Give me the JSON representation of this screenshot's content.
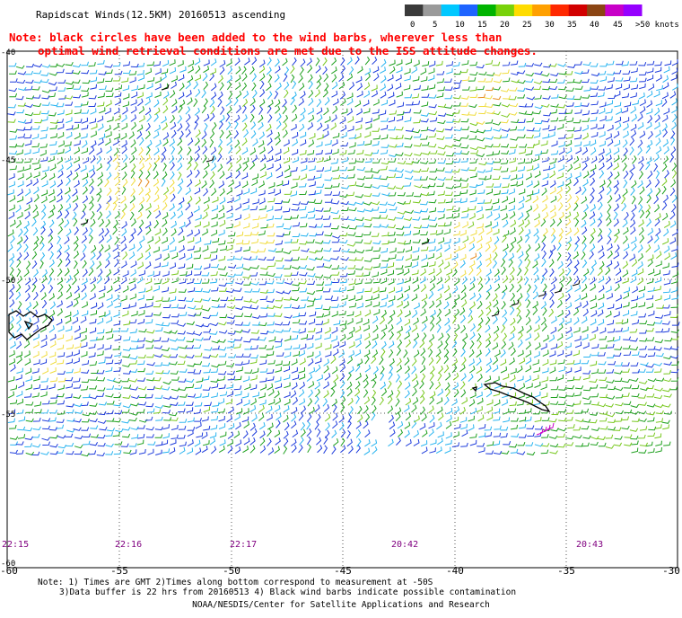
{
  "title": "Rapidscat Winds(12.5KM) 20160513 ascending",
  "warning_line1": "Note: black circles have been added to the wind barbs, wherever less than",
  "warning_line2": "optimal wind retrieval conditions are met due to the ISS attitude changes.",
  "legend": {
    "labels": [
      "0",
      "5",
      "10",
      "15",
      "20",
      "25",
      "30",
      "35",
      "40",
      "45",
      ">50 knots"
    ],
    "colors": [
      "#3a3a3a",
      "#9a9a9a",
      "#00c8ff",
      "#1e64ff",
      "#00b400",
      "#78d20a",
      "#ffdc00",
      "#ffa000",
      "#ff2800",
      "#d20000",
      "#8b4513",
      "#c800c8",
      "#9600ff"
    ]
  },
  "lat_labels": [
    "-40",
    "-45",
    "-50",
    "-55",
    "-60"
  ],
  "lon_labels": [
    "-60",
    "-55",
    "-50",
    "-45",
    "-40",
    "-35",
    "-30"
  ],
  "time_labels": [
    "22:15",
    "22:16",
    "22:17",
    "20:42",
    "20:43"
  ],
  "footnote_line1": "Note: 1) Times are GMT 2)Times along bottom correspond to measurement at -50S",
  "footnote_line2": "3)Data buffer is 22 hrs from 20160513 4) Black wind barbs indicate possible contamination",
  "credit": "NOAA/NESDIS/Center for Satellite Applications and Research",
  "barb_colors": {
    "dark_blue": "#1e3cdc",
    "light_blue": "#28b4f0",
    "green": "#1ea01e",
    "lime": "#78c81e",
    "yellow": "#f0dc3c",
    "orange": "#e68c1e",
    "black": "#000000",
    "magenta": "#c800c8"
  },
  "warning_color": "#ff0000",
  "time_label_color": "#800080"
}
